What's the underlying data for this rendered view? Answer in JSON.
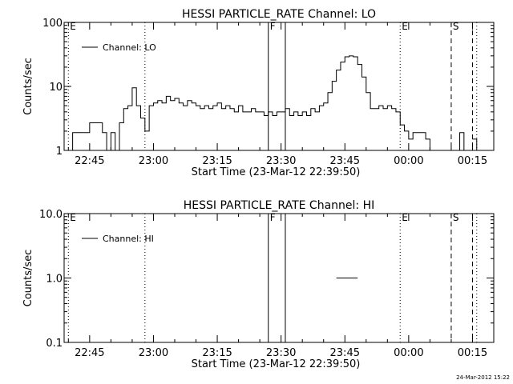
{
  "footer_timestamp": "24-Mar-2012 15:22",
  "chart_data": [
    {
      "type": "line",
      "title": "HESSI PARTICLE_RATE Channel: LO",
      "xlabel": "Start Time (23-Mar-12 22:39:50)",
      "ylabel": "Counts/sec",
      "y_scale": "log",
      "ylim": [
        1,
        100
      ],
      "y_ticks": [
        {
          "value": 1,
          "label": "1"
        },
        {
          "value": 10,
          "label": "10"
        },
        {
          "value": 100,
          "label": "100"
        }
      ],
      "xlim": [
        "22:39",
        "00:20"
      ],
      "x_ticks": [
        {
          "value": "22:45",
          "label": "22:45"
        },
        {
          "value": "23:00",
          "label": "23:00"
        },
        {
          "value": "23:15",
          "label": "23:15"
        },
        {
          "value": "23:30",
          "label": "23:30"
        },
        {
          "value": "23:45",
          "label": "23:45"
        },
        {
          "value": "00:00",
          "label": "00:00"
        },
        {
          "value": "00:15",
          "label": "00:15"
        }
      ],
      "legend": {
        "label": "Channel: LO",
        "placement": "top-left"
      },
      "markers": [
        {
          "time": "22:40",
          "style": "dotted",
          "label": "E"
        },
        {
          "time": "22:58",
          "style": "dotted",
          "label": ""
        },
        {
          "time": "23:27",
          "style": "solid",
          "label": "F"
        },
        {
          "time": "23:31",
          "style": "solid",
          "label": ""
        },
        {
          "time": "23:58",
          "style": "dotted",
          "label": "E"
        },
        {
          "time": "00:10",
          "style": "dashed",
          "label": "S"
        },
        {
          "time": "00:15",
          "style": "dashed",
          "label": ""
        },
        {
          "time": "00:16",
          "style": "dotted",
          "label": ""
        }
      ],
      "series": [
        {
          "segments": [
            [
              [
                "22:40",
                1
              ],
              [
                "22:41",
                1.9
              ],
              [
                "22:42",
                1.9
              ],
              [
                "22:43",
                1.9
              ],
              [
                "22:44",
                1.9
              ],
              [
                "22:45",
                2.7
              ],
              [
                "22:46",
                2.7
              ],
              [
                "22:47",
                2.7
              ],
              [
                "22:48",
                1.9
              ],
              [
                "22:49",
                1
              ],
              [
                "22:50",
                1.9
              ],
              [
                "22:51",
                1
              ],
              [
                "22:52",
                2.7
              ],
              [
                "22:53",
                4.5
              ],
              [
                "22:54",
                5
              ],
              [
                "22:55",
                9.5
              ],
              [
                "22:56",
                5
              ],
              [
                "22:57",
                3.2
              ],
              [
                "22:58",
                2
              ],
              [
                "22:59",
                5
              ],
              [
                "23:00",
                5.5
              ],
              [
                "23:01",
                6
              ],
              [
                "23:02",
                5.5
              ],
              [
                "23:03",
                7
              ],
              [
                "23:04",
                6
              ],
              [
                "23:05",
                6.5
              ],
              [
                "23:06",
                5.5
              ],
              [
                "23:07",
                5
              ],
              [
                "23:08",
                6
              ],
              [
                "23:09",
                5.5
              ],
              [
                "23:10",
                5
              ],
              [
                "23:11",
                4.5
              ],
              [
                "23:12",
                5
              ],
              [
                "23:13",
                4.5
              ],
              [
                "23:14",
                5
              ],
              [
                "23:15",
                5.5
              ],
              [
                "23:16",
                4.5
              ],
              [
                "23:17",
                5
              ],
              [
                "23:18",
                4.5
              ],
              [
                "23:19",
                4
              ],
              [
                "23:20",
                5
              ],
              [
                "23:21",
                4
              ],
              [
                "23:22",
                4
              ],
              [
                "23:23",
                4.5
              ],
              [
                "23:24",
                4
              ],
              [
                "23:25",
                4
              ],
              [
                "23:26",
                3.5
              ],
              [
                "23:27",
                4
              ],
              [
                "23:28",
                3.5
              ],
              [
                "23:29",
                4
              ],
              [
                "23:30",
                4
              ],
              [
                "23:31",
                4.5
              ],
              [
                "23:32",
                3.5
              ],
              [
                "23:33",
                4
              ],
              [
                "23:34",
                3.5
              ],
              [
                "23:35",
                4
              ],
              [
                "23:36",
                3.5
              ],
              [
                "23:37",
                4.5
              ],
              [
                "23:38",
                4
              ],
              [
                "23:39",
                5
              ],
              [
                "23:40",
                5.5
              ],
              [
                "23:41",
                8
              ],
              [
                "23:42",
                12
              ],
              [
                "23:43",
                18
              ],
              [
                "23:44",
                24
              ],
              [
                "23:45",
                29
              ],
              [
                "23:46",
                30
              ],
              [
                "23:47",
                29
              ],
              [
                "23:48",
                22
              ],
              [
                "23:49",
                14
              ],
              [
                "23:50",
                8
              ],
              [
                "23:51",
                4.5
              ],
              [
                "23:52",
                4.5
              ],
              [
                "23:53",
                5
              ],
              [
                "23:54",
                4.5
              ],
              [
                "23:55",
                5
              ],
              [
                "23:56",
                4.5
              ],
              [
                "23:57",
                4
              ],
              [
                "23:58",
                2.5
              ],
              [
                "23:59",
                2
              ],
              [
                "00:00",
                1.5
              ],
              [
                "00:01",
                1.9
              ],
              [
                "00:02",
                1.9
              ],
              [
                "00:03",
                1.9
              ],
              [
                "00:04",
                1.5
              ],
              [
                "00:05",
                1
              ]
            ],
            [
              [
                "00:11",
                1
              ],
              [
                "00:12",
                1.9
              ],
              [
                "00:13",
                1
              ]
            ],
            [
              [
                "00:15",
                1.5
              ],
              [
                "00:16",
                1
              ]
            ]
          ]
        }
      ]
    },
    {
      "type": "line",
      "title": "HESSI PARTICLE_RATE Channel: HI",
      "xlabel": "Start Time (23-Mar-12 22:39:50)",
      "ylabel": "Counts/sec",
      "y_scale": "log",
      "ylim": [
        0.1,
        10
      ],
      "y_ticks": [
        {
          "value": 0.1,
          "label": "0.1"
        },
        {
          "value": 1,
          "label": "1.0"
        },
        {
          "value": 10,
          "label": "10.0"
        }
      ],
      "xlim": [
        "22:39",
        "00:20"
      ],
      "x_ticks": [
        {
          "value": "22:45",
          "label": "22:45"
        },
        {
          "value": "23:00",
          "label": "23:00"
        },
        {
          "value": "23:15",
          "label": "23:15"
        },
        {
          "value": "23:30",
          "label": "23:30"
        },
        {
          "value": "23:45",
          "label": "23:45"
        },
        {
          "value": "00:00",
          "label": "00:00"
        },
        {
          "value": "00:15",
          "label": "00:15"
        }
      ],
      "legend": {
        "label": "Channel: HI",
        "placement": "top-left"
      },
      "markers": [
        {
          "time": "22:40",
          "style": "dotted",
          "label": "E"
        },
        {
          "time": "22:58",
          "style": "dotted",
          "label": ""
        },
        {
          "time": "23:27",
          "style": "solid",
          "label": "F"
        },
        {
          "time": "23:31",
          "style": "solid",
          "label": ""
        },
        {
          "time": "23:58",
          "style": "dotted",
          "label": "E"
        },
        {
          "time": "00:10",
          "style": "dashed",
          "label": "S"
        },
        {
          "time": "00:15",
          "style": "dashed",
          "label": ""
        },
        {
          "time": "00:16",
          "style": "dotted",
          "label": ""
        }
      ],
      "series": [
        {
          "segments": [
            [
              [
                "23:43",
                1
              ],
              [
                "23:44",
                1
              ],
              [
                "23:45",
                1
              ],
              [
                "23:46",
                1
              ],
              [
                "23:47",
                1
              ]
            ]
          ]
        }
      ]
    }
  ]
}
